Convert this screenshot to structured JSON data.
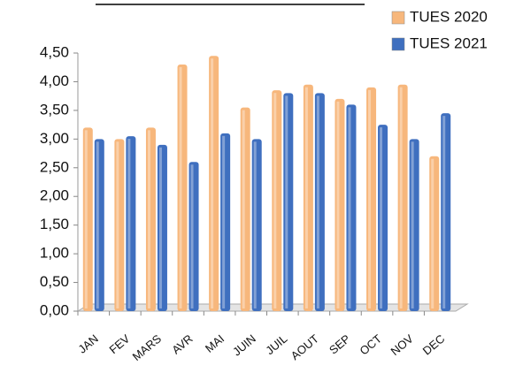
{
  "chart_data": {
    "type": "bar",
    "categories": [
      "JAN",
      "FEV",
      "MARS",
      "AVR",
      "MAI",
      "JUIN",
      "JUIL",
      "AOUT",
      "SEP",
      "OCT",
      "NOV",
      "DEC"
    ],
    "series": [
      {
        "name": "TUES  2020",
        "color": "#f7b77c",
        "values": [
          3.2,
          3.0,
          3.2,
          4.3,
          4.45,
          3.55,
          3.85,
          3.95,
          3.7,
          3.9,
          3.95,
          2.7
        ]
      },
      {
        "name": "TUES  2021",
        "color": "#3f6fbf",
        "values": [
          3.0,
          3.05,
          2.9,
          2.6,
          3.1,
          3.0,
          3.8,
          3.8,
          3.6,
          3.25,
          3.0,
          3.45
        ]
      }
    ],
    "ylim": [
      0,
      4.5
    ],
    "yticks": [
      {
        "value": 0,
        "label": "0,00"
      },
      {
        "value": 0.5,
        "label": "0,50"
      },
      {
        "value": 1,
        "label": "1,00"
      },
      {
        "value": 1.5,
        "label": "1,50"
      },
      {
        "value": 2,
        "label": "2,00"
      },
      {
        "value": 2.5,
        "label": "2,50"
      },
      {
        "value": 3,
        "label": "3,00"
      },
      {
        "value": 3.5,
        "label": "3,50"
      },
      {
        "value": 4,
        "label": "4,00"
      },
      {
        "value": 4.5,
        "label": "4,50"
      }
    ],
    "legend": "top-right"
  }
}
